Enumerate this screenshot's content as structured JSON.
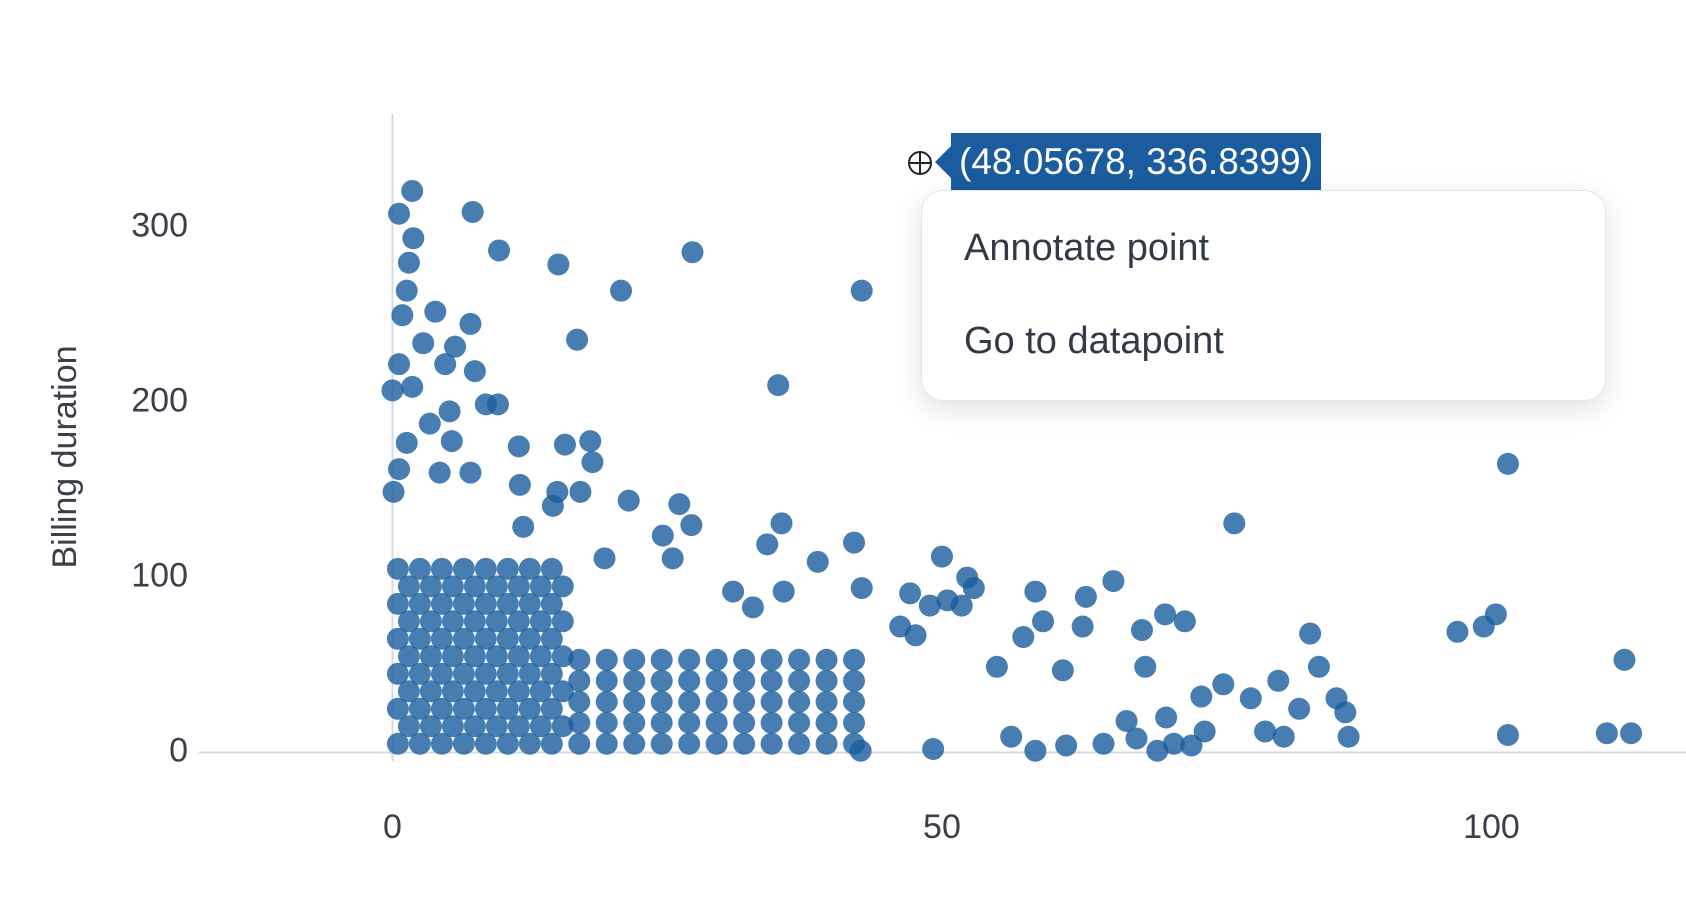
{
  "chart_data": {
    "type": "scatter",
    "y_label": "Billing duration",
    "color": "#1a5c9e",
    "xlim": [
      -17.6,
      117.7
    ],
    "ylim": [
      -18,
      365
    ],
    "xticks": [
      0,
      50,
      100
    ],
    "yticks": [
      0,
      100,
      200,
      300
    ],
    "x": [
      0.5,
      2.5,
      4.5,
      6.5,
      8.5,
      10.5,
      12.5,
      14.5,
      1.5,
      3.5,
      5.5,
      7.5,
      9.5,
      11.5,
      13.5,
      15.5,
      0.5,
      2.5,
      4.5,
      6.5,
      8.5,
      10.5,
      12.5,
      14.5,
      1.5,
      3.5,
      5.5,
      7.5,
      9.5,
      11.5,
      13.5,
      15.5,
      0.5,
      2.5,
      4.5,
      6.5,
      8.5,
      10.5,
      12.5,
      14.5,
      1.5,
      3.5,
      5.5,
      7.5,
      9.5,
      11.5,
      13.5,
      15.5,
      0.5,
      2.5,
      4.5,
      6.5,
      8.5,
      10.5,
      12.5,
      14.5,
      1.5,
      3.5,
      5.5,
      7.5,
      9.5,
      11.5,
      13.5,
      15.5,
      0.5,
      2.5,
      4.5,
      6.5,
      8.5,
      10.5,
      12.5,
      14.5,
      1.5,
      3.5,
      5.5,
      7.5,
      9.5,
      11.5,
      13.5,
      15.5,
      0.5,
      2.5,
      4.5,
      6.5,
      8.5,
      10.5,
      12.5,
      14.5,
      17,
      19.5,
      22,
      24.5,
      27,
      29.5,
      32,
      34.5,
      37,
      39.5,
      42,
      17,
      19.5,
      22,
      24.5,
      27,
      29.5,
      32,
      34.5,
      37,
      39.5,
      42,
      17,
      19.5,
      22,
      24.5,
      27,
      29.5,
      32,
      34.5,
      37,
      39.5,
      42,
      17,
      19.5,
      22,
      24.5,
      27,
      29.5,
      32,
      34.5,
      37,
      39.5,
      42,
      17,
      19.5,
      22,
      24.5,
      27,
      29.5,
      32,
      34.5,
      37,
      39.5,
      42,
      1.8,
      0.6,
      7.3,
      1.9,
      9.7,
      15.1,
      27.3,
      1.5,
      1.3,
      20.8,
      42.7,
      0.9,
      3.9,
      7.1,
      2.8,
      5.7,
      16.8,
      0.6,
      4.8,
      7.5,
      35.1,
      0,
      1.8,
      8.5,
      9.6,
      5.2,
      3.4,
      1.3,
      5.4,
      11.5,
      15.7,
      18.0,
      18.2,
      101.5,
      0.6,
      4.3,
      7.1,
      11.6,
      15.0,
      17.1,
      0.1,
      21.5,
      26.1,
      14.6,
      76.6,
      35.4,
      27.2,
      11.9,
      34.1,
      42.0,
      24.6,
      25.5,
      38.7,
      50.0,
      19.3,
      52.3,
      65.6,
      52.9,
      42.7,
      47.1,
      58.5,
      63.1,
      35.6,
      31.0,
      50.5,
      51.8,
      48.9,
      32.8,
      70.3,
      59.2,
      72.1,
      100.4,
      99.3,
      96.9,
      68.2,
      62.8,
      46.2,
      47.6,
      83.5,
      57.4,
      112.1,
      84.3,
      68.5,
      55.0,
      61.0,
      80.6,
      75.6,
      73.6,
      78.1,
      85.9,
      86.7,
      82.5,
      70.4,
      66.8,
      79.4,
      81.1,
      87.0,
      101.5,
      110.5,
      112.7,
      73.9,
      71.1,
      69.6,
      72.7,
      67.7,
      64.7,
      61.3,
      58.5,
      49.2,
      42.6,
      56.3
    ],
    "values": [
      5,
      5,
      5,
      5,
      5,
      5,
      5,
      5,
      15,
      15,
      15,
      15,
      15,
      15,
      15,
      15,
      25,
      25,
      25,
      25,
      25,
      25,
      25,
      25,
      35,
      35,
      35,
      35,
      35,
      35,
      35,
      35,
      45,
      45,
      45,
      45,
      45,
      45,
      45,
      45,
      55,
      55,
      55,
      55,
      55,
      55,
      55,
      55,
      65,
      65,
      65,
      65,
      65,
      65,
      65,
      65,
      75,
      75,
      75,
      75,
      75,
      75,
      75,
      75,
      85,
      85,
      85,
      85,
      85,
      85,
      85,
      85,
      95,
      95,
      95,
      95,
      95,
      95,
      95,
      95,
      105,
      105,
      105,
      105,
      105,
      105,
      105,
      105,
      5,
      5,
      5,
      5,
      5,
      5,
      5,
      5,
      5,
      5,
      5,
      17,
      17,
      17,
      17,
      17,
      17,
      17,
      17,
      17,
      17,
      17,
      29,
      29,
      29,
      29,
      29,
      29,
      29,
      29,
      29,
      29,
      29,
      41,
      41,
      41,
      41,
      41,
      41,
      41,
      41,
      41,
      41,
      41,
      53,
      53,
      53,
      53,
      53,
      53,
      53,
      53,
      53,
      53,
      53,
      321,
      308,
      309,
      294,
      287,
      279,
      286,
      280,
      264,
      264,
      264,
      250,
      252,
      245,
      234,
      232,
      236,
      222,
      222,
      218,
      210,
      207,
      209,
      199,
      199,
      195,
      188,
      177,
      178,
      175,
      176,
      178,
      166,
      165,
      162,
      160,
      160,
      153,
      149,
      149,
      149,
      144,
      142,
      141,
      131,
      131,
      130,
      129,
      119,
      120,
      124,
      111,
      109,
      112,
      111,
      100,
      98,
      94,
      94,
      91,
      92,
      89,
      92,
      92,
      87,
      84,
      84,
      83,
      79,
      75,
      75,
      79,
      72,
      69,
      70,
      72,
      72,
      67,
      68,
      66,
      53,
      49,
      49,
      49,
      47,
      41,
      39,
      32,
      31,
      31,
      23,
      25,
      20,
      18,
      12,
      9,
      9,
      10,
      11,
      11,
      12,
      5,
      1,
      4,
      8,
      5,
      4,
      1,
      2,
      1,
      9
    ],
    "hover_label": "(48.05678, 336.8399)"
  },
  "context_menu": {
    "items": [
      "Annotate point",
      "Go to datapoint"
    ]
  }
}
